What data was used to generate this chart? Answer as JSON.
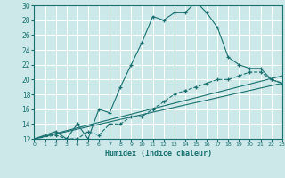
{
  "xlabel": "Humidex (Indice chaleur)",
  "bg_color": "#cce8e8",
  "grid_color": "#ffffff",
  "line_color": "#1a7070",
  "xlim": [
    0,
    23
  ],
  "ylim": [
    12,
    30
  ],
  "xticks": [
    0,
    1,
    2,
    3,
    4,
    5,
    6,
    7,
    8,
    9,
    10,
    11,
    12,
    13,
    14,
    15,
    16,
    17,
    18,
    19,
    20,
    21,
    22,
    23
  ],
  "yticks": [
    12,
    14,
    16,
    18,
    20,
    22,
    24,
    26,
    28,
    30
  ],
  "curve1_x": [
    0,
    2,
    3,
    4,
    5,
    6,
    7,
    8,
    9,
    10,
    11,
    12,
    13,
    14,
    15,
    16,
    17,
    18,
    19,
    20,
    21,
    22,
    23
  ],
  "curve1_y": [
    12,
    13,
    12,
    14,
    12,
    16,
    15.5,
    19,
    22,
    25,
    28.5,
    28,
    29,
    29,
    30.5,
    29,
    27,
    23,
    22,
    21.5,
    21.5,
    20,
    19.5
  ],
  "curve2_x": [
    0,
    2,
    3,
    4,
    5,
    6,
    7,
    8,
    9,
    10,
    11,
    12,
    13,
    14,
    15,
    16,
    17,
    18,
    19,
    20,
    21,
    22,
    23
  ],
  "curve2_y": [
    12,
    12.5,
    12,
    12,
    13,
    12.5,
    14,
    14,
    15,
    15,
    16,
    17,
    18,
    18.5,
    19,
    19.5,
    20,
    20,
    20.5,
    21,
    21,
    20,
    19.5
  ],
  "line1_x": [
    0,
    23
  ],
  "line1_y": [
    12,
    19.5
  ],
  "line2_x": [
    0,
    23
  ],
  "line2_y": [
    12,
    20.5
  ]
}
